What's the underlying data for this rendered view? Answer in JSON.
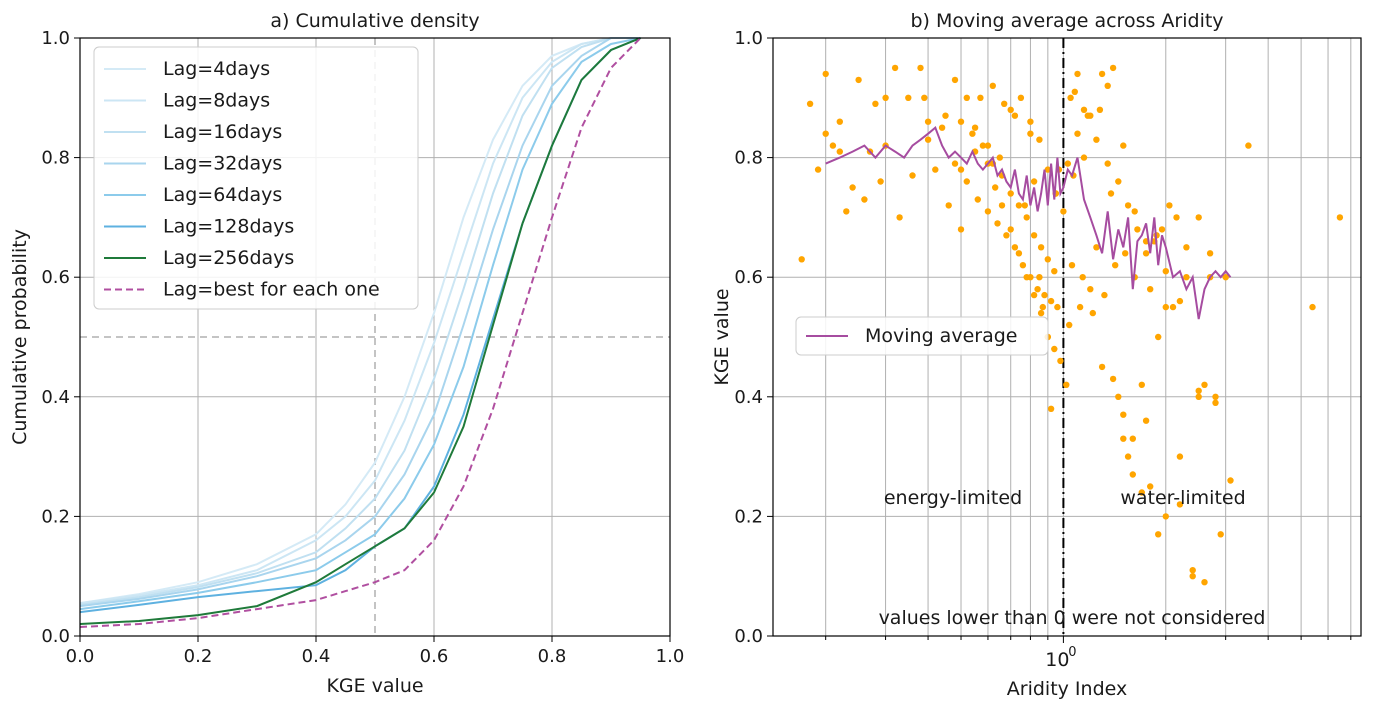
{
  "chart_data": [
    {
      "type": "line",
      "title": "a) Cumulative density",
      "xlabel": "KGE value",
      "ylabel": "Cumulative probability",
      "xlim": [
        0.0,
        1.0
      ],
      "ylim": [
        0.0,
        1.0
      ],
      "xticks": [
        "0.0",
        "0.2",
        "0.4",
        "0.6",
        "0.8",
        "1.0"
      ],
      "yticks": [
        "0.0",
        "0.2",
        "0.4",
        "0.6",
        "0.8",
        "1.0"
      ],
      "grid": true,
      "legend_position": "upper-left",
      "reference_lines": [
        {
          "orientation": "vertical",
          "value": 0.5,
          "style": "dashed",
          "color": "#b0b0b0"
        },
        {
          "orientation": "horizontal",
          "value": 0.5,
          "style": "dashed",
          "color": "#b0b0b0"
        }
      ],
      "series": [
        {
          "name": "Lag=4days",
          "color": "#d4eaf6",
          "style": "solid",
          "x": [
            0.0,
            0.1,
            0.2,
            0.3,
            0.4,
            0.45,
            0.5,
            0.55,
            0.6,
            0.65,
            0.7,
            0.75,
            0.8,
            0.85,
            0.9,
            0.95
          ],
          "y": [
            0.055,
            0.07,
            0.09,
            0.12,
            0.17,
            0.22,
            0.29,
            0.4,
            0.54,
            0.7,
            0.83,
            0.92,
            0.97,
            0.99,
            1.0,
            1.0
          ]
        },
        {
          "name": "Lag=8days",
          "color": "#cce6f4",
          "style": "solid",
          "x": [
            0.0,
            0.1,
            0.2,
            0.3,
            0.4,
            0.45,
            0.5,
            0.55,
            0.6,
            0.65,
            0.7,
            0.75,
            0.8,
            0.85,
            0.9,
            0.95
          ],
          "y": [
            0.055,
            0.068,
            0.085,
            0.11,
            0.16,
            0.2,
            0.26,
            0.36,
            0.49,
            0.64,
            0.79,
            0.9,
            0.96,
            0.99,
            1.0,
            1.0
          ]
        },
        {
          "name": "Lag=16days",
          "color": "#c0e0f1",
          "style": "solid",
          "x": [
            0.0,
            0.1,
            0.2,
            0.3,
            0.4,
            0.45,
            0.5,
            0.55,
            0.6,
            0.65,
            0.7,
            0.75,
            0.8,
            0.85,
            0.9,
            0.95
          ],
          "y": [
            0.052,
            0.065,
            0.082,
            0.105,
            0.14,
            0.18,
            0.23,
            0.31,
            0.43,
            0.58,
            0.74,
            0.87,
            0.95,
            0.985,
            1.0,
            1.0
          ]
        },
        {
          "name": "Lag=32days",
          "color": "#a9d5ee",
          "style": "solid",
          "x": [
            0.0,
            0.1,
            0.2,
            0.3,
            0.4,
            0.45,
            0.5,
            0.55,
            0.6,
            0.65,
            0.7,
            0.75,
            0.8,
            0.85,
            0.9,
            0.95
          ],
          "y": [
            0.05,
            0.062,
            0.078,
            0.1,
            0.13,
            0.16,
            0.2,
            0.27,
            0.37,
            0.52,
            0.68,
            0.82,
            0.92,
            0.97,
            1.0,
            1.0
          ]
        },
        {
          "name": "Lag=64days",
          "color": "#8ccbeb",
          "style": "solid",
          "x": [
            0.0,
            0.1,
            0.2,
            0.3,
            0.4,
            0.45,
            0.5,
            0.55,
            0.6,
            0.65,
            0.7,
            0.75,
            0.8,
            0.85,
            0.9,
            0.95
          ],
          "y": [
            0.045,
            0.058,
            0.072,
            0.09,
            0.11,
            0.14,
            0.17,
            0.23,
            0.32,
            0.45,
            0.62,
            0.78,
            0.89,
            0.96,
            0.99,
            1.0
          ]
        },
        {
          "name": "Lag=128days",
          "color": "#5eb1e0",
          "style": "solid",
          "x": [
            0.0,
            0.1,
            0.2,
            0.3,
            0.4,
            0.45,
            0.5,
            0.55,
            0.6,
            0.65,
            0.7,
            0.75,
            0.8,
            0.85,
            0.9,
            0.95
          ],
          "y": [
            0.04,
            0.052,
            0.065,
            0.075,
            0.085,
            0.11,
            0.15,
            0.18,
            0.25,
            0.37,
            0.53,
            0.69,
            0.82,
            0.93,
            0.98,
            1.0
          ]
        },
        {
          "name": "Lag=256days",
          "color": "#1f7a3a",
          "style": "solid",
          "x": [
            0.0,
            0.1,
            0.2,
            0.3,
            0.4,
            0.45,
            0.5,
            0.55,
            0.6,
            0.65,
            0.7,
            0.75,
            0.8,
            0.85,
            0.9,
            0.95
          ],
          "y": [
            0.02,
            0.025,
            0.035,
            0.05,
            0.09,
            0.12,
            0.15,
            0.18,
            0.24,
            0.35,
            0.52,
            0.69,
            0.82,
            0.93,
            0.98,
            1.0
          ]
        },
        {
          "name": "Lag=best for each one",
          "color": "#b04fa0",
          "style": "dashed",
          "x": [
            0.0,
            0.1,
            0.2,
            0.3,
            0.4,
            0.45,
            0.5,
            0.55,
            0.6,
            0.65,
            0.7,
            0.75,
            0.8,
            0.85,
            0.9,
            0.95
          ],
          "y": [
            0.015,
            0.02,
            0.03,
            0.045,
            0.06,
            0.075,
            0.09,
            0.11,
            0.16,
            0.25,
            0.38,
            0.54,
            0.7,
            0.85,
            0.95,
            1.0
          ]
        }
      ]
    },
    {
      "type": "scatter",
      "title": "b) Moving average across Aridity",
      "xlabel": "Aridity Index",
      "ylabel": "KGE value",
      "xscale": "log",
      "xlim": [
        0.14,
        7.5
      ],
      "ylim": [
        0.0,
        1.0
      ],
      "xticks": [
        "10^0"
      ],
      "yticks": [
        "0.0",
        "0.2",
        "0.4",
        "0.6",
        "0.8",
        "1.0"
      ],
      "grid": true,
      "legend_position": "center-left",
      "reference_lines": [
        {
          "orientation": "vertical",
          "value": 1.0,
          "style": "dashdot",
          "color": "#000000"
        }
      ],
      "annotations": [
        "energy-limited",
        "water-limited",
        "values lower than 0 were not considered"
      ],
      "series": [
        {
          "name": "",
          "color": "#ffa500",
          "x": [
            0.17,
            0.18,
            0.19,
            0.2,
            0.21,
            0.22,
            0.23,
            0.25,
            0.27,
            0.29,
            0.3,
            0.32,
            0.35,
            0.38,
            0.4,
            0.45,
            0.48,
            0.5,
            0.52,
            0.55,
            0.57,
            0.6,
            0.62,
            0.65,
            0.67,
            0.7,
            0.72,
            0.75,
            0.77,
            0.8,
            0.82,
            0.85,
            0.87,
            0.9,
            0.92,
            0.95,
            0.97,
            1.02,
            1.05,
            1.08,
            1.1,
            1.15,
            1.2,
            1.25,
            1.3,
            1.35,
            1.4,
            1.45,
            1.5,
            1.55,
            1.6,
            1.7,
            1.75,
            1.8,
            1.9,
            2.0,
            2.1,
            2.2,
            2.3,
            2.4,
            2.5,
            2.6,
            2.7,
            2.8,
            2.9,
            3.1,
            3.5,
            5.4,
            6.5,
            0.55,
            0.6,
            0.63,
            0.66,
            0.7,
            0.74,
            0.78,
            0.82,
            0.86,
            0.9,
            0.94,
            0.98,
            1.04,
            1.12,
            1.2,
            1.3,
            1.4,
            1.5,
            1.6,
            1.7,
            1.8,
            1.9,
            2.0,
            2.2,
            2.4,
            2.6,
            2.8,
            3.0,
            0.8,
            0.85,
            0.9,
            0.95,
            1.0,
            1.07,
            1.15,
            1.25,
            1.35,
            1.45,
            1.55,
            1.65,
            1.75,
            1.85,
            1.95,
            2.05,
            2.15,
            2.3,
            2.5,
            2.7,
            0.5,
            0.54,
            0.58,
            0.62,
            0.66,
            0.7,
            0.74,
            0.78,
            0.82,
            0.86,
            0.9,
            0.94,
            1.03,
            1.1,
            1.18,
            1.28,
            1.38,
            1.5,
            1.62,
            1.75,
            1.88,
            2.0,
            2.2,
            2.5,
            0.4,
            0.44,
            0.48,
            0.52,
            0.56,
            0.6,
            0.64,
            0.68,
            0.72,
            0.76,
            0.8,
            0.84,
            0.88,
            0.92,
            0.96,
            1.06,
            1.14,
            1.22,
            1.32,
            1.42,
            1.52,
            1.62,
            0.2,
            0.22,
            0.24,
            0.26,
            0.28,
            0.3,
            0.33,
            0.36,
            0.39,
            0.42,
            0.46,
            0.5
          ],
          "y": [
            0.63,
            0.89,
            0.78,
            0.94,
            0.82,
            0.86,
            0.71,
            0.93,
            0.81,
            0.76,
            0.9,
            0.95,
            0.9,
            0.95,
            0.86,
            0.87,
            0.93,
            0.78,
            0.9,
            0.85,
            0.9,
            0.82,
            0.92,
            0.8,
            0.89,
            0.88,
            0.87,
            0.9,
            0.72,
            0.86,
            0.76,
            0.6,
            0.55,
            0.5,
            0.38,
            0.74,
            0.78,
            0.42,
            0.9,
            0.91,
            0.94,
            0.88,
            0.87,
            0.65,
            0.94,
            0.92,
            0.95,
            0.4,
            0.37,
            0.3,
            0.33,
            0.42,
            0.36,
            0.58,
            0.17,
            0.2,
            0.55,
            0.3,
            0.6,
            0.11,
            0.41,
            0.42,
            0.64,
            0.4,
            0.17,
            0.26,
            0.82,
            0.55,
            0.7,
            0.81,
            0.79,
            0.75,
            0.72,
            0.68,
            0.64,
            0.6,
            0.57,
            0.54,
            0.5,
            0.48,
            0.46,
            0.52,
            0.55,
            0.58,
            0.45,
            0.43,
            0.33,
            0.27,
            0.24,
            0.25,
            0.5,
            0.55,
            0.22,
            0.1,
            0.09,
            0.39,
            0.6,
            0.84,
            0.83,
            0.78,
            0.74,
            0.71,
            0.77,
            0.8,
            0.83,
            0.79,
            0.76,
            0.72,
            0.68,
            0.64,
            0.66,
            0.68,
            0.72,
            0.7,
            0.65,
            0.7,
            0.6,
            0.86,
            0.84,
            0.82,
            0.79,
            0.77,
            0.74,
            0.72,
            0.7,
            0.67,
            0.65,
            0.63,
            0.61,
            0.79,
            0.84,
            0.87,
            0.88,
            0.74,
            0.82,
            0.71,
            0.66,
            0.67,
            0.61,
            0.56,
            0.4,
            0.83,
            0.85,
            0.79,
            0.76,
            0.73,
            0.71,
            0.69,
            0.67,
            0.65,
            0.62,
            0.6,
            0.58,
            0.57,
            0.56,
            0.55,
            0.62,
            0.6,
            0.54,
            0.57,
            0.62,
            0.64,
            0.6,
            0.84,
            0.81,
            0.75,
            0.73,
            0.89,
            0.82,
            0.7,
            0.77,
            0.9,
            0.78,
            0.72,
            0.68
          ]
        },
        {
          "name": "Moving average",
          "color": "#a64ca0",
          "x": [
            0.2,
            0.22,
            0.24,
            0.26,
            0.28,
            0.3,
            0.32,
            0.34,
            0.36,
            0.38,
            0.4,
            0.42,
            0.44,
            0.46,
            0.48,
            0.5,
            0.52,
            0.54,
            0.56,
            0.58,
            0.6,
            0.62,
            0.64,
            0.66,
            0.68,
            0.7,
            0.72,
            0.74,
            0.76,
            0.78,
            0.8,
            0.82,
            0.84,
            0.86,
            0.88,
            0.9,
            0.92,
            0.94,
            0.96,
            0.98,
            1.0,
            1.03,
            1.06,
            1.1,
            1.15,
            1.2,
            1.25,
            1.3,
            1.35,
            1.4,
            1.45,
            1.5,
            1.55,
            1.6,
            1.65,
            1.7,
            1.75,
            1.8,
            1.85,
            1.9,
            1.95,
            2.0,
            2.1,
            2.2,
            2.3,
            2.4,
            2.5,
            2.6,
            2.7,
            2.8,
            2.9,
            3.0,
            3.1
          ],
          "y": [
            0.79,
            0.8,
            0.81,
            0.82,
            0.8,
            0.82,
            0.81,
            0.8,
            0.82,
            0.83,
            0.84,
            0.85,
            0.82,
            0.8,
            0.81,
            0.8,
            0.79,
            0.81,
            0.79,
            0.78,
            0.79,
            0.8,
            0.77,
            0.78,
            0.76,
            0.75,
            0.78,
            0.74,
            0.73,
            0.77,
            0.72,
            0.75,
            0.71,
            0.74,
            0.78,
            0.72,
            0.79,
            0.73,
            0.8,
            0.74,
            0.75,
            0.78,
            0.77,
            0.8,
            0.73,
            0.7,
            0.67,
            0.64,
            0.71,
            0.63,
            0.68,
            0.65,
            0.7,
            0.58,
            0.66,
            0.67,
            0.69,
            0.64,
            0.7,
            0.62,
            0.67,
            0.65,
            0.6,
            0.61,
            0.58,
            0.6,
            0.53,
            0.58,
            0.6,
            0.61,
            0.6,
            0.61,
            0.6
          ]
        }
      ]
    }
  ]
}
